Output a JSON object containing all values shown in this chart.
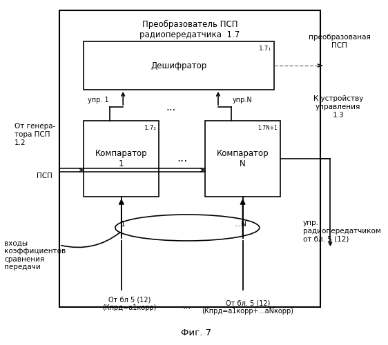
{
  "title": "Фиг. 7",
  "outer_title": "Преобразователь ПСП\nрадиопередатчика  1.7",
  "decoder_label": "Дешифратор",
  "decoder_id": "1.7₁",
  "comp1_label": "Компаратор\n1",
  "comp1_id": "1.7₂",
  "compN_label": "Компаратор\nN",
  "compN_id": "1.7N+1",
  "text_generator": "От генера-\nтора ПСП\n1.2",
  "text_psp": "ПСП",
  "text_converted": "преобразованая\nПСП",
  "text_control": "К устройству\nуправления\n1.3",
  "text_upr1": "упр. 1",
  "text_uprN": "упр.N",
  "text_upr_radio": "упр.\nрадиопередатчиком\nот бл. 5 (12)",
  "text_inputs": "входы\nкоэффициентов\nсравнения\nпередачи",
  "text_from_bl1": "От бл 5 (12)\n(Кпрд=a1корр)",
  "text_from_blN": "От бл. 5 (12)\n(Кпрд=a1корр+...аNкорр)",
  "text_1": "1",
  "text_N": "...N",
  "text_dots_comp": "...",
  "text_dots_bottom": "...",
  "bg_color": "#ffffff",
  "font_size": 8.5,
  "font_size_small": 7.5,
  "font_size_tiny": 6.5
}
